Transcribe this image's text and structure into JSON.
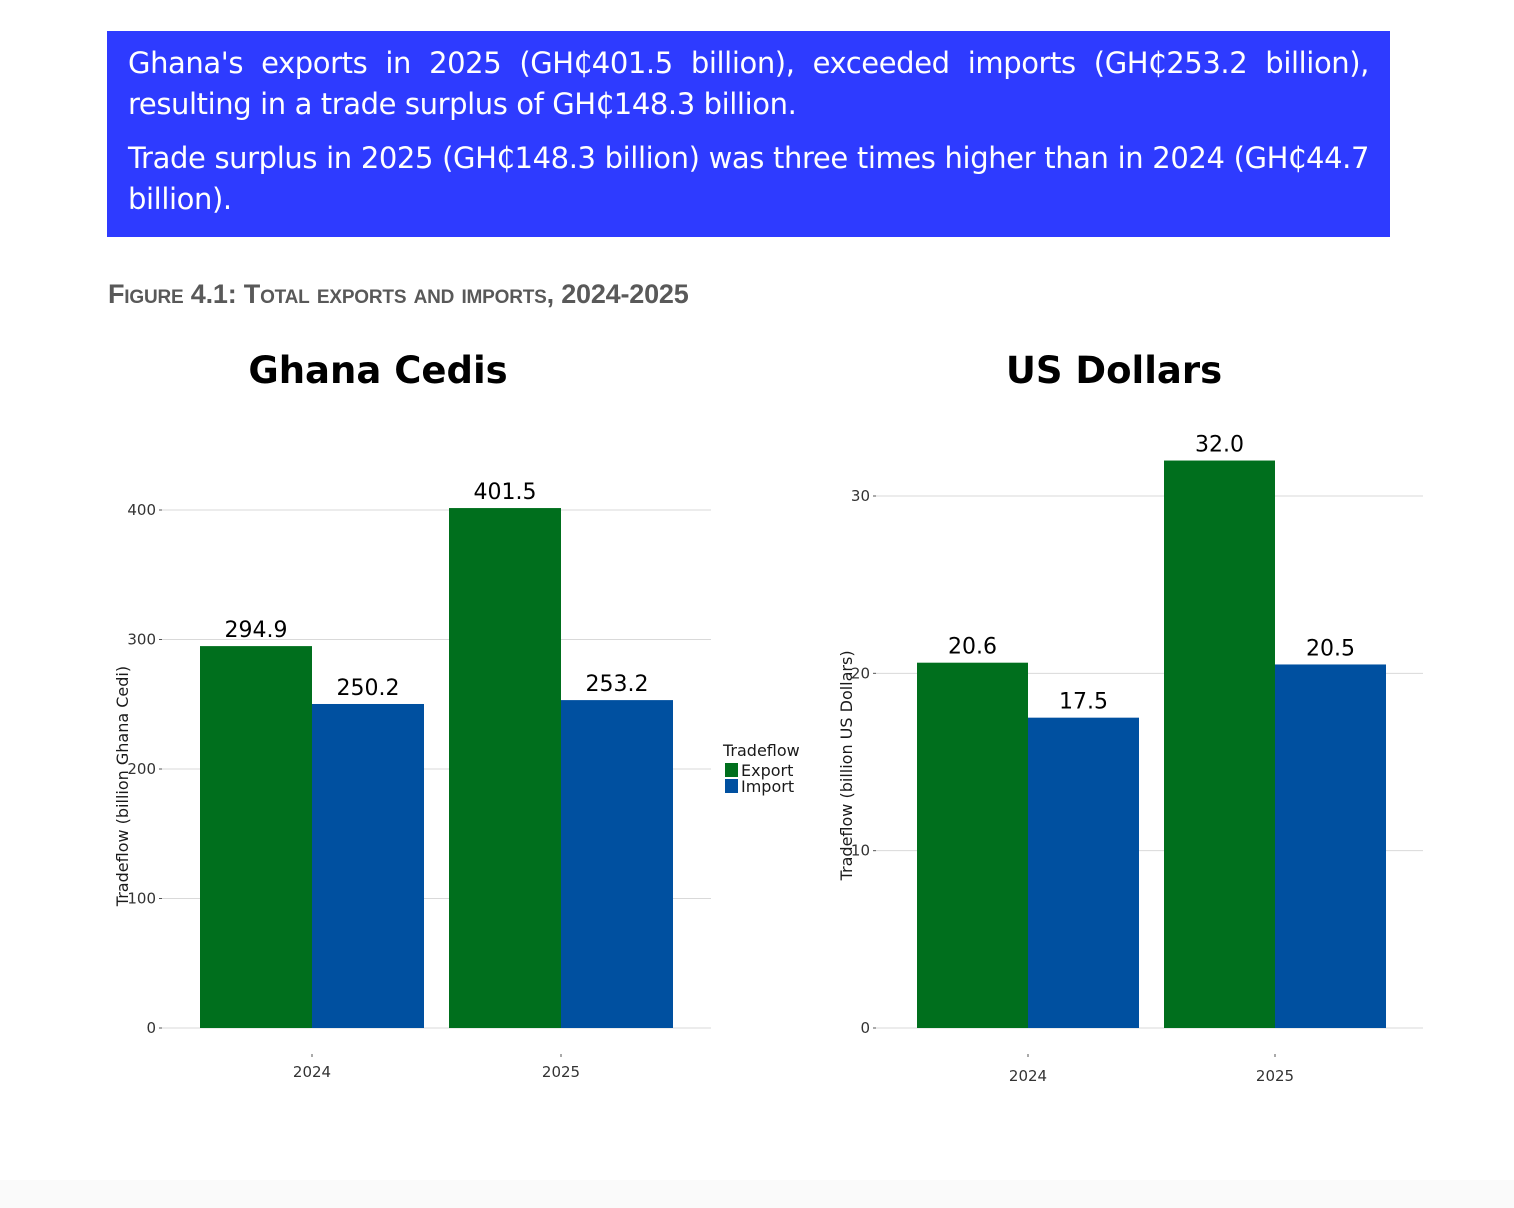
{
  "summary": {
    "paragraph1": "Ghana's exports in 2025 (GH₵401.5 billion), exceeded imports (GH₵253.2 billion), resulting in a trade surplus of GH₵148.3 billion.",
    "paragraph2": "Trade surplus in 2025 (GH₵148.3 billion) was three times higher than in 2024 (GH₵44.7 billion).",
    "background_color": "#2e3bff"
  },
  "figure_caption": "Figure 4.1: Total exports and imports, 2024-2025",
  "legend": {
    "title": "Tradeflow",
    "items": [
      "Export",
      "Import"
    ]
  },
  "colors": {
    "export": "#006f1d",
    "import": "#0050a0",
    "grid": "#d9d9d9"
  },
  "chart_data": [
    {
      "type": "bar",
      "title": "Ghana Cedis",
      "categories": [
        "2024",
        "2025"
      ],
      "series": [
        {
          "name": "Export",
          "values": [
            294.9,
            401.5
          ]
        },
        {
          "name": "Import",
          "values": [
            250.2,
            253.2
          ]
        }
      ],
      "value_labels": {
        "Export": [
          "294.9",
          "401.5"
        ],
        "Import": [
          "250.2",
          "253.2"
        ]
      },
      "xlabel": "",
      "ylabel": "Tradeflow (billion Ghana Cedi)",
      "ylim": [
        0,
        420
      ],
      "yticks": [
        0,
        100,
        200,
        300,
        400
      ],
      "grid": true,
      "legend": "right"
    },
    {
      "type": "bar",
      "title": "US Dollars",
      "categories": [
        "2024",
        "2025"
      ],
      "series": [
        {
          "name": "Export",
          "values": [
            20.6,
            32.0
          ]
        },
        {
          "name": "Import",
          "values": [
            17.5,
            20.5
          ]
        }
      ],
      "value_labels": {
        "Export": [
          "20.6",
          "32.0"
        ],
        "Import": [
          "17.5",
          "20.5"
        ]
      },
      "xlabel": "",
      "ylabel": "Tradeflow (billion US Dollars)",
      "ylim": [
        0,
        33
      ],
      "yticks": [
        0,
        10,
        20,
        30
      ],
      "grid": true,
      "legend": "none"
    }
  ]
}
